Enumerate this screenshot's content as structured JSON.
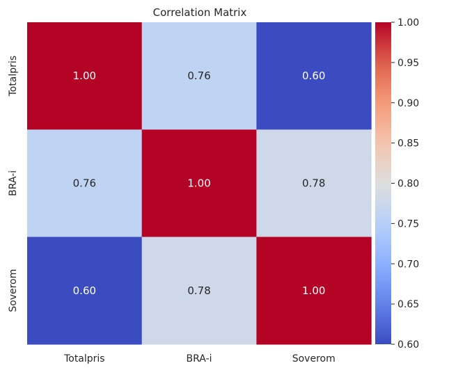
{
  "chart_data": {
    "type": "heatmap",
    "title": "Correlation Matrix",
    "x_categories": [
      "Totalpris",
      "BRA-i",
      "Soverom"
    ],
    "y_categories": [
      "Totalpris",
      "BRA-i",
      "Soverom"
    ],
    "values": [
      [
        1.0,
        0.76,
        0.6
      ],
      [
        0.76,
        1.0,
        0.78
      ],
      [
        0.6,
        0.78,
        1.0
      ]
    ],
    "value_labels": [
      [
        "1.00",
        "0.76",
        "0.60"
      ],
      [
        "0.76",
        "1.00",
        "0.78"
      ],
      [
        "0.60",
        "0.78",
        "1.00"
      ]
    ],
    "colormap": "coolwarm",
    "color_range": [
      0.6,
      1.0
    ],
    "colorbar_ticks": [
      "0.60",
      "0.65",
      "0.70",
      "0.75",
      "0.80",
      "0.85",
      "0.90",
      "0.95",
      "1.00"
    ],
    "colorbar_values": [
      0.6,
      0.65,
      0.7,
      0.75,
      0.8,
      0.85,
      0.9,
      0.95,
      1.0
    ],
    "colorbar_position": "right"
  }
}
